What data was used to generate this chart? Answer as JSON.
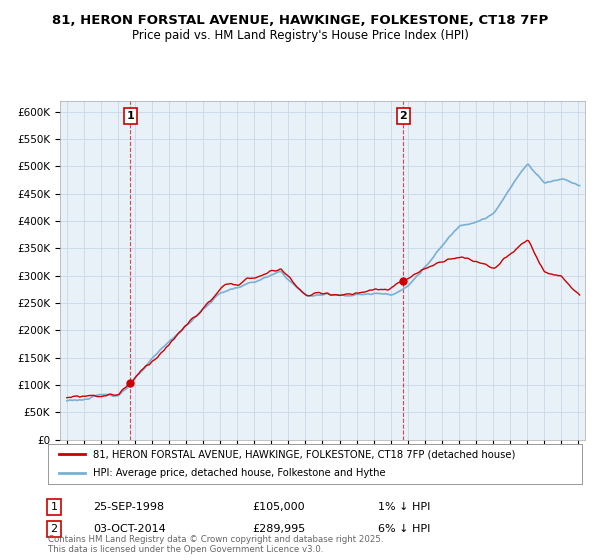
{
  "title": "81, HERON FORSTAL AVENUE, HAWKINGE, FOLKESTONE, CT18 7FP",
  "subtitle": "Price paid vs. HM Land Registry's House Price Index (HPI)",
  "ylim": [
    0,
    620000
  ],
  "yticks": [
    0,
    50000,
    100000,
    150000,
    200000,
    250000,
    300000,
    350000,
    400000,
    450000,
    500000,
    550000,
    600000
  ],
  "ytick_labels": [
    "£0",
    "£50K",
    "£100K",
    "£150K",
    "£200K",
    "£250K",
    "£300K",
    "£350K",
    "£400K",
    "£450K",
    "£500K",
    "£550K",
    "£600K"
  ],
  "sale1_date": 1998.73,
  "sale1_label": "1",
  "sale1_price": 105000,
  "sale2_date": 2014.75,
  "sale2_label": "2",
  "sale2_price": 289995,
  "line_color_price": "#cc0000",
  "line_color_hpi": "#7ab0d4",
  "plot_bg_color": "#e8f0f8",
  "legend_label_price": "81, HERON FORSTAL AVENUE, HAWKINGE, FOLKESTONE, CT18 7FP (detached house)",
  "legend_label_hpi": "HPI: Average price, detached house, Folkestone and Hythe",
  "footer": "Contains HM Land Registry data © Crown copyright and database right 2025.\nThis data is licensed under the Open Government Licence v3.0.",
  "bg_color": "#ffffff",
  "grid_color": "#c8d8e8",
  "xmin": 1994.6,
  "xmax": 2025.4
}
